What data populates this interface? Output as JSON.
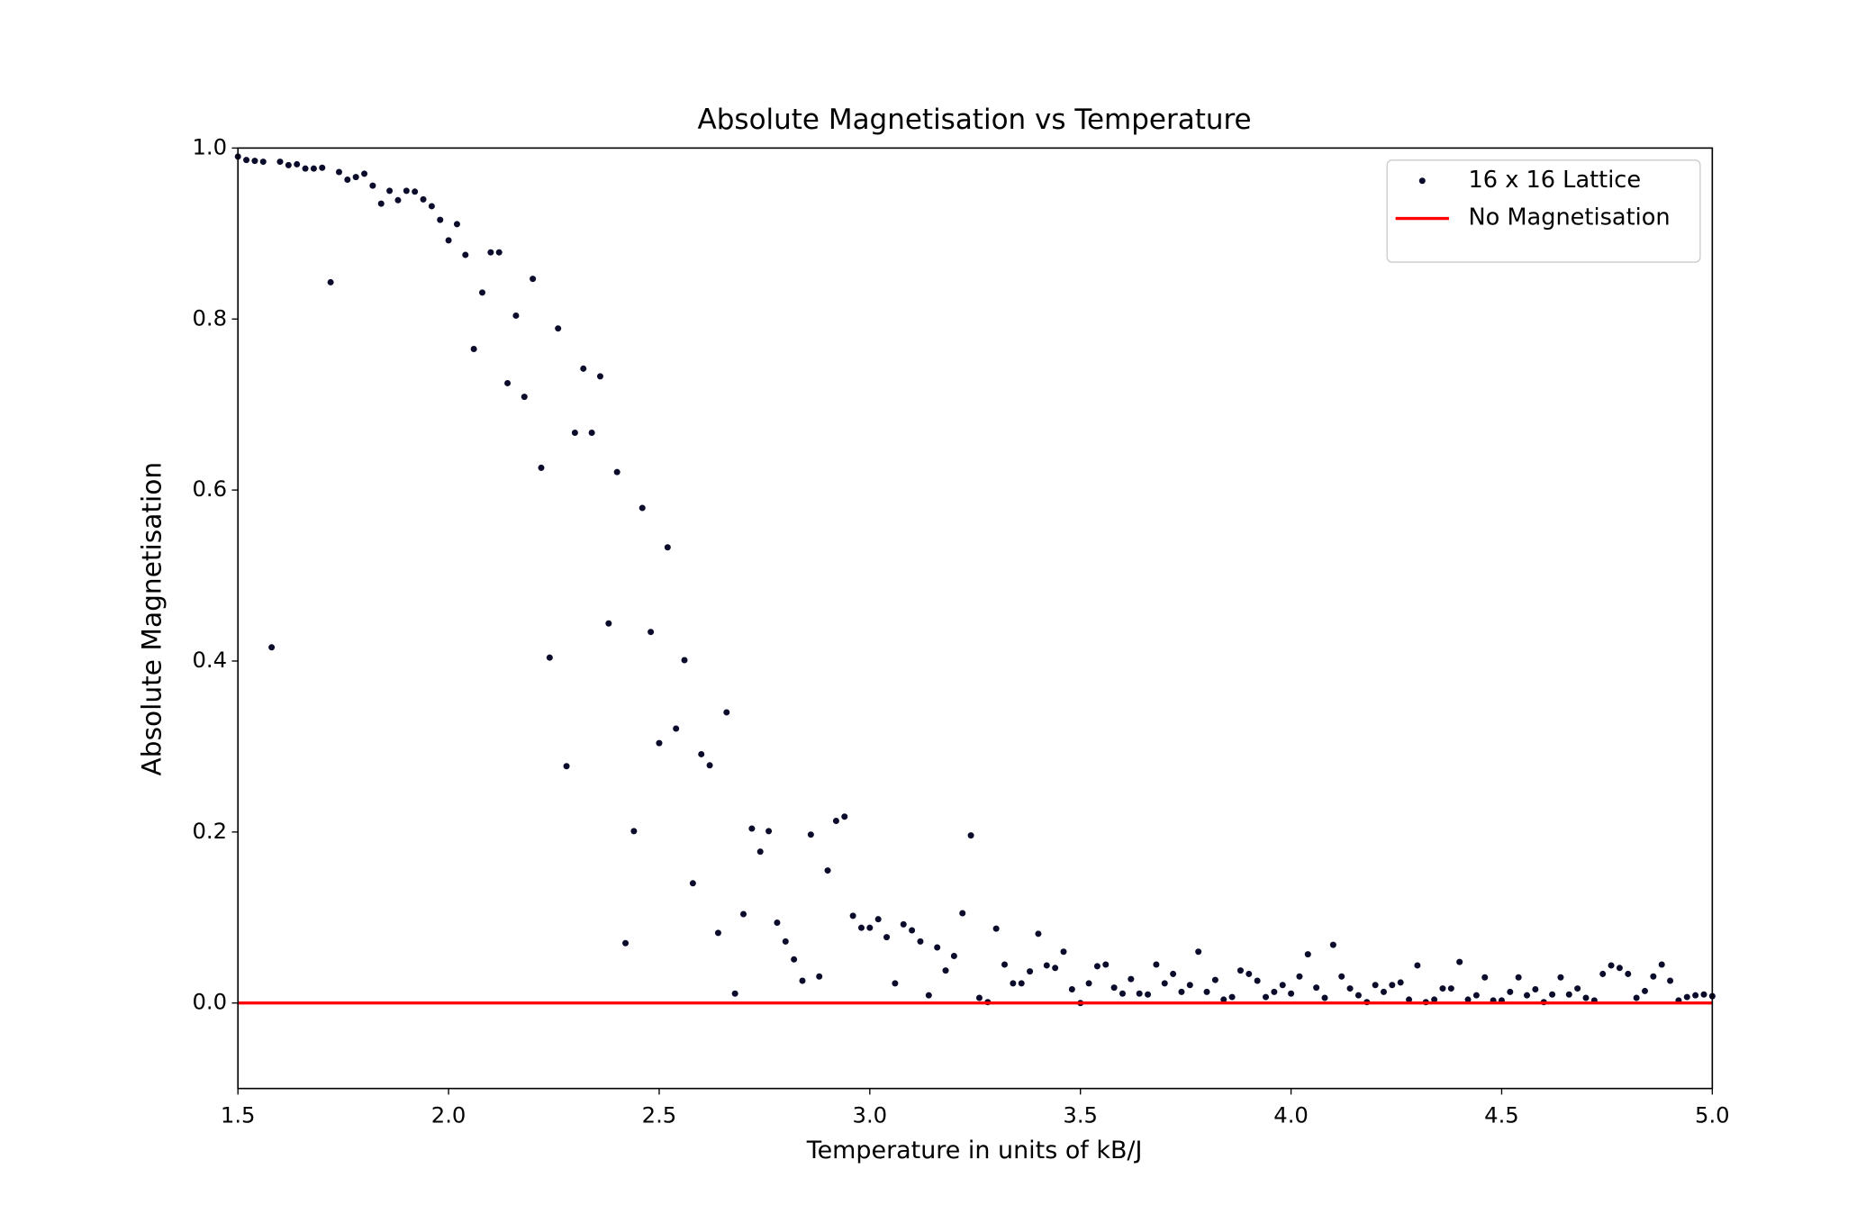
{
  "chart_data": {
    "type": "scatter",
    "title": "Absolute Magnetisation vs Temperature",
    "xlabel": "Temperature in units of kB/J",
    "ylabel": "Absolute Magnetisation",
    "xlim": [
      1.5,
      5.0
    ],
    "ylim": [
      -0.1,
      1.0
    ],
    "xticks": [
      1.5,
      {
        "value": 2,
        "label": "2.0"
      },
      2.5,
      {
        "value": 3,
        "label": "3.0"
      },
      3.5,
      {
        "value": 4,
        "label": "4.0"
      },
      4.5,
      {
        "value": 5,
        "label": "5.0"
      }
    ],
    "yticks": [
      {
        "value": 0,
        "label": "0.0"
      },
      0.2,
      0.4,
      0.6,
      0.8,
      {
        "value": 1,
        "label": "1.0"
      }
    ],
    "legend": "upper right",
    "series": [
      {
        "name": "16 x 16 Lattice",
        "type": "scatter",
        "color": "#0b0b2b",
        "x": [
          1.5,
          1.52,
          1.54,
          1.56,
          1.58,
          1.6,
          1.62,
          1.64,
          1.66,
          1.68,
          1.7,
          1.72,
          1.74,
          1.76,
          1.78,
          1.8,
          1.82,
          1.84,
          1.86,
          1.88,
          1.9,
          1.92,
          1.94,
          1.96,
          1.98,
          2.0,
          2.02,
          2.04,
          2.06,
          2.08,
          2.1,
          2.12,
          2.14,
          2.16,
          2.18,
          2.2,
          2.22,
          2.24,
          2.26,
          2.28,
          2.3,
          2.32,
          2.34,
          2.36,
          2.38,
          2.4,
          2.42,
          2.44,
          2.46,
          2.48,
          2.5,
          2.52,
          2.54,
          2.56,
          2.58,
          2.6,
          2.62,
          2.64,
          2.66,
          2.68,
          2.7,
          2.72,
          2.74,
          2.76,
          2.78,
          2.8,
          2.82,
          2.84,
          2.86,
          2.88,
          2.9,
          2.92,
          2.94,
          2.96,
          2.98,
          3.0,
          3.02,
          3.04,
          3.06,
          3.08,
          3.1,
          3.12,
          3.14,
          3.16,
          3.18,
          3.2,
          3.22,
          3.24,
          3.26,
          3.28,
          3.3,
          3.32,
          3.34,
          3.36,
          3.38,
          3.4,
          3.42,
          3.44,
          3.46,
          3.48,
          3.5,
          3.52,
          3.54,
          3.56,
          3.58,
          3.6,
          3.62,
          3.64,
          3.66,
          3.68,
          3.7,
          3.72,
          3.74,
          3.76,
          3.78,
          3.8,
          3.82,
          3.84,
          3.86,
          3.88,
          3.9,
          3.92,
          3.94,
          3.96,
          3.98,
          4.0,
          4.02,
          4.04,
          4.06,
          4.08,
          4.1,
          4.12,
          4.14,
          4.16,
          4.18,
          4.2,
          4.22,
          4.24,
          4.26,
          4.28,
          4.3,
          4.32,
          4.34,
          4.36,
          4.38,
          4.4,
          4.42,
          4.44,
          4.46,
          4.48,
          4.5,
          4.52,
          4.54,
          4.56,
          4.58,
          4.6,
          4.62,
          4.64,
          4.66,
          4.68,
          4.7,
          4.72,
          4.74,
          4.76,
          4.78,
          4.8,
          4.82,
          4.84,
          4.86,
          4.88,
          4.9,
          4.92,
          4.94,
          4.96,
          4.98,
          5.0
        ],
        "values": [
          0.99,
          0.986,
          0.985,
          0.984,
          0.416,
          0.984,
          0.98,
          0.981,
          0.976,
          0.976,
          0.977,
          0.843,
          0.972,
          0.963,
          0.966,
          0.97,
          0.956,
          0.935,
          0.95,
          0.939,
          0.95,
          0.949,
          0.94,
          0.932,
          0.916,
          0.892,
          0.911,
          0.875,
          0.765,
          0.831,
          0.878,
          0.878,
          0.725,
          0.804,
          0.709,
          0.847,
          0.626,
          0.404,
          0.789,
          0.277,
          0.667,
          0.742,
          0.667,
          0.733,
          0.444,
          0.621,
          0.07,
          0.201,
          0.579,
          0.434,
          0.304,
          0.533,
          0.321,
          0.401,
          0.14,
          0.291,
          0.278,
          0.082,
          0.34,
          0.011,
          0.104,
          0.204,
          0.177,
          0.201,
          0.094,
          0.072,
          0.051,
          0.026,
          0.197,
          0.031,
          0.155,
          0.213,
          0.218,
          0.102,
          0.088,
          0.088,
          0.098,
          0.077,
          0.023,
          0.092,
          0.085,
          0.072,
          0.009,
          0.065,
          0.038,
          0.055,
          0.105,
          0.196,
          0.006,
          0.001,
          0.087,
          0.045,
          0.023,
          0.023,
          0.037,
          0.081,
          0.044,
          0.041,
          0.06,
          0.016,
          0.0,
          0.023,
          0.043,
          0.045,
          0.018,
          0.011,
          0.028,
          0.011,
          0.01,
          0.045,
          0.023,
          0.034,
          0.013,
          0.021,
          0.06,
          0.013,
          0.027,
          0.004,
          0.007,
          0.038,
          0.034,
          0.026,
          0.007,
          0.013,
          0.021,
          0.011,
          0.031,
          0.057,
          0.018,
          0.006,
          0.068,
          0.031,
          0.017,
          0.009,
          0.001,
          0.021,
          0.013,
          0.021,
          0.024,
          0.004,
          0.044,
          0.001,
          0.004,
          0.017,
          0.017,
          0.048,
          0.004,
          0.009,
          0.03,
          0.003,
          0.003,
          0.013,
          0.03,
          0.009,
          0.016,
          0.001,
          0.01,
          0.03,
          0.01,
          0.017,
          0.006,
          0.003,
          0.034,
          0.044,
          0.041,
          0.034,
          0.006,
          0.014,
          0.031,
          0.045,
          0.026,
          0.003,
          0.007,
          0.009,
          0.01,
          0.008
        ]
      },
      {
        "name": "No Magnetisation",
        "type": "line",
        "color": "#ff0000",
        "x": [
          1.5,
          5.0
        ],
        "values": [
          0,
          0
        ]
      }
    ]
  }
}
